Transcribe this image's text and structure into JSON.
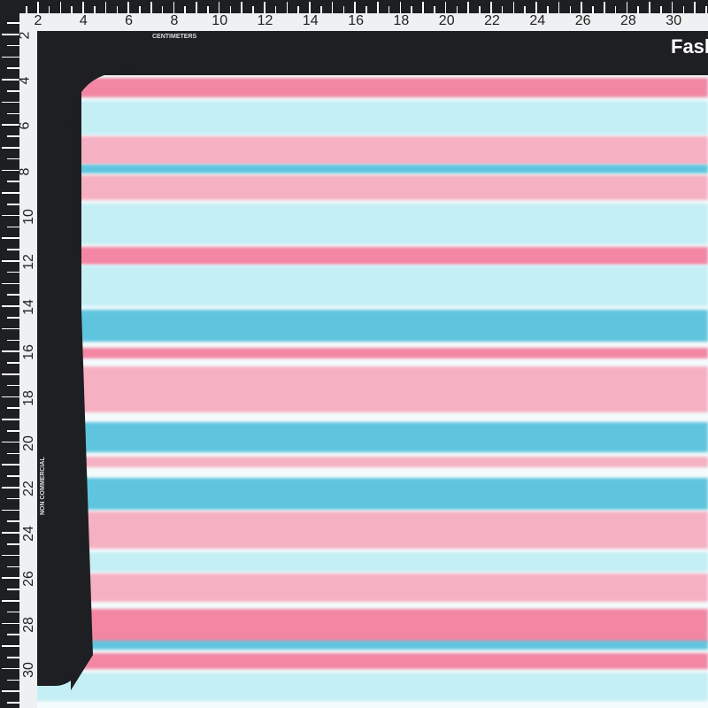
{
  "ruler": {
    "top_labels": [
      "2",
      "4",
      "6",
      "8",
      "10",
      "12",
      "14",
      "16",
      "18",
      "20",
      "22",
      "24",
      "26",
      "28",
      "30"
    ],
    "left_labels": [
      "2",
      "4",
      "6",
      "8",
      "10",
      "12",
      "14",
      "16",
      "18",
      "20",
      "22",
      "24",
      "26",
      "28",
      "30"
    ],
    "unit_label": "CENTIMETERS",
    "side_label": "NON COMMERCIAL"
  },
  "brand_text": "Fash",
  "fabric": {
    "pattern": "watercolor horizontal stripes",
    "colors": {
      "pink": "#f27a9a",
      "light_pink": "#f6a8bc",
      "blue": "#4fc0dc",
      "light_cyan": "#bfeef5",
      "white": "#f4fbfc"
    }
  }
}
